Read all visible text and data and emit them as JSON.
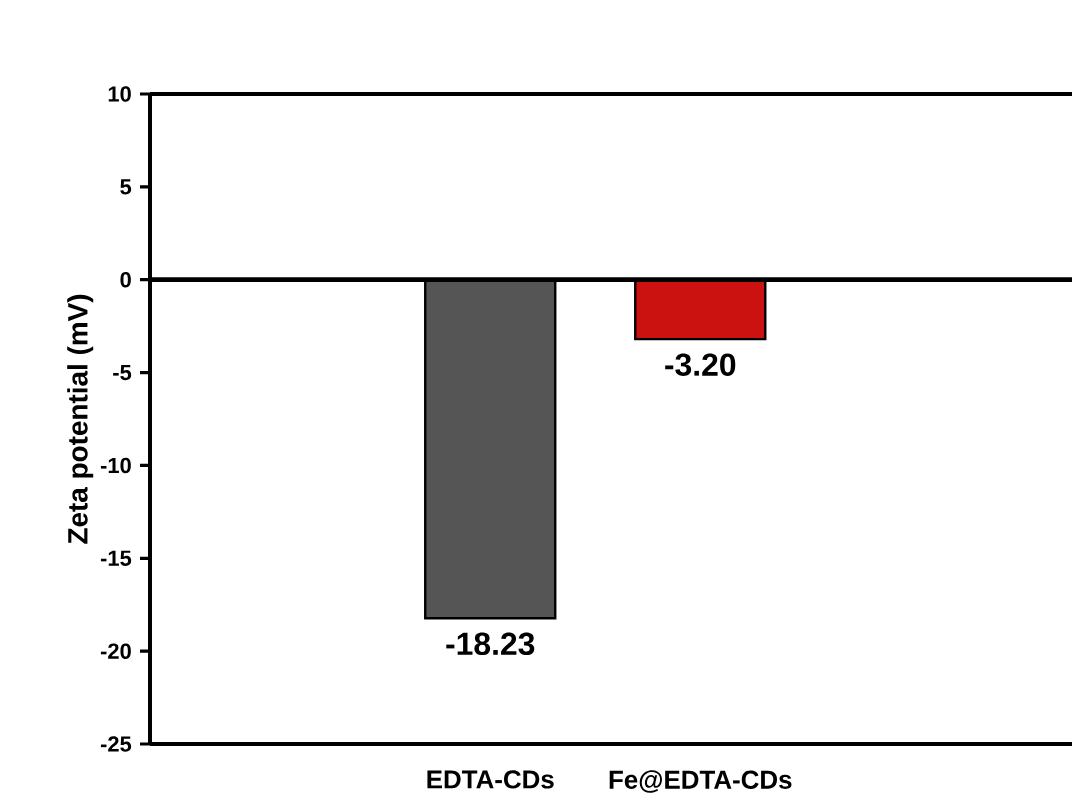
{
  "chart_data": {
    "type": "bar",
    "ylabel": "Zeta potential (mV)",
    "categories": [
      "EDTA-CDs",
      "Fe@EDTA-CDs"
    ],
    "values": [
      -18.23,
      -3.2
    ],
    "colors": [
      "#555555",
      "#cc1111"
    ],
    "value_labels": [
      "-18.23",
      "-3.20"
    ],
    "ylim": [
      -25,
      10
    ],
    "yticks": [
      -25,
      -20,
      -15,
      -10,
      -5,
      0,
      5,
      10
    ]
  }
}
